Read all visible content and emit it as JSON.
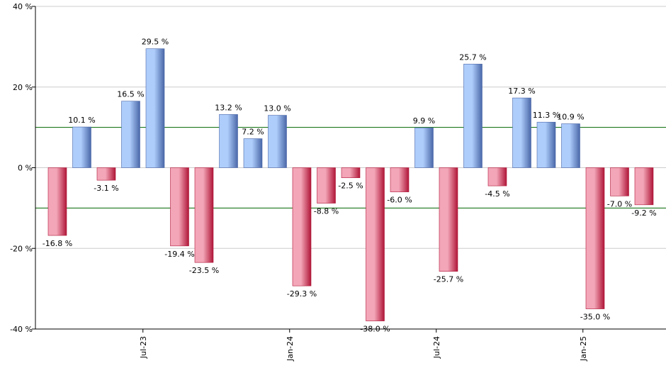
{
  "chart_data": {
    "type": "bar",
    "title": "",
    "xlabel": "",
    "ylabel": "",
    "ylim": [
      -40,
      40
    ],
    "y_ticks": [
      40,
      20,
      0,
      -20,
      -40
    ],
    "y_tick_labels": [
      "40 %",
      "20 %",
      "0 %",
      "-20 %",
      "-40 %"
    ],
    "reference_lines": [
      10,
      -10
    ],
    "x_tick_labels": [
      "Jul-23",
      "Jan-24",
      "Jul-24",
      "Jan-25"
    ],
    "x_tick_bar_index": [
      3.5,
      9.5,
      15.5,
      21.5
    ],
    "values": [
      -16.8,
      10.1,
      -3.1,
      16.5,
      29.5,
      -19.4,
      -23.5,
      13.2,
      7.2,
      13.0,
      -29.3,
      -8.8,
      -2.5,
      -38.0,
      -6.0,
      9.9,
      -25.7,
      25.7,
      -4.5,
      17.3,
      11.3,
      10.9,
      -35.0,
      -7.0,
      -9.2
    ],
    "value_labels": [
      "-16.8 %",
      "10.1 %",
      "-3.1 %",
      "16.5 %",
      "29.5 %",
      "-19.4 %",
      "-23.5 %",
      "13.2 %",
      "7.2 %",
      "13.0 %",
      "-29.3 %",
      "-8.8 %",
      "-2.5 %",
      "-38.0 %",
      "-6.0 %",
      "9.9 %",
      "-25.7 %",
      "25.7 %",
      "-4.5 %",
      "17.3 %",
      "11.3 %",
      "10.9 %",
      "-35.0 %",
      "-7.0 %",
      "-9.2 %"
    ],
    "colors": {
      "positive_light": "#aecdfb",
      "positive_dark": "#4a67a8",
      "negative_light": "#f3a6b8",
      "negative_dark": "#b01638",
      "gridline": "#cccccc",
      "reference_line": "#006600",
      "axis": "#000000"
    }
  }
}
